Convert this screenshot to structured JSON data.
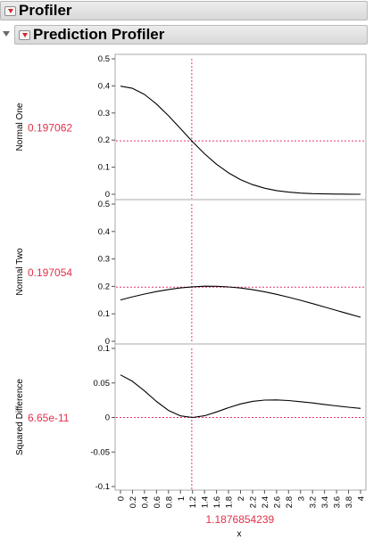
{
  "outline": {
    "profiler_title": "Profiler",
    "prediction_profiler_title": "Prediction Profiler"
  },
  "profiler": {
    "x_label": "x",
    "x_current": "1.1876854239",
    "x_current_value": 1.1876854239,
    "x_range": [
      0,
      4
    ],
    "x_ticks": [
      "0",
      "0.2",
      "0.4",
      "0.6",
      "0.8",
      "1",
      "1.2",
      "1.4",
      "1.6",
      "1.8",
      "2",
      "2.2",
      "2.4",
      "2.6",
      "2.8",
      "3",
      "3.2",
      "3.4",
      "3.6",
      "3.8",
      "4"
    ],
    "x_tick_values": [
      0,
      0.2,
      0.4,
      0.6,
      0.8,
      1,
      1.2,
      1.4,
      1.6,
      1.8,
      2,
      2.2,
      2.4,
      2.6,
      2.8,
      3,
      3.2,
      3.4,
      3.6,
      3.8,
      4
    ],
    "panels": [
      {
        "name": "Normal One",
        "current": "0.197062",
        "current_value": 0.197062,
        "ylim": [
          0,
          0.5
        ],
        "y_ticks": [
          "0",
          "0.1",
          "0.2",
          "0.3",
          "0.4",
          "0.5"
        ],
        "y_tick_values": [
          0,
          0.1,
          0.2,
          0.3,
          0.4,
          0.5
        ],
        "curve": {
          "x": [
            0,
            0.2,
            0.4,
            0.6,
            0.8,
            1.0,
            1.2,
            1.4,
            1.6,
            1.8,
            2.0,
            2.2,
            2.4,
            2.6,
            2.8,
            3.0,
            3.2,
            3.4,
            3.6,
            3.8,
            4.0
          ],
          "y": [
            0.3989,
            0.391,
            0.3683,
            0.3332,
            0.2897,
            0.242,
            0.1942,
            0.1497,
            0.1109,
            0.079,
            0.054,
            0.0355,
            0.0224,
            0.0136,
            0.0079,
            0.0044,
            0.0024,
            0.0012,
            0.0006,
            0.0003,
            0.0001
          ]
        }
      },
      {
        "name": "Normal Two",
        "current": "0.197054",
        "current_value": 0.197054,
        "ylim": [
          0,
          0.5
        ],
        "y_ticks": [
          "0",
          "0.1",
          "0.2",
          "0.3",
          "0.4",
          "0.5"
        ],
        "y_tick_values": [
          0,
          0.1,
          0.2,
          0.3,
          0.4,
          0.5
        ],
        "curve": {
          "x": [
            0,
            0.2,
            0.4,
            0.6,
            0.8,
            1.0,
            1.2,
            1.4,
            1.6,
            1.8,
            2.0,
            2.2,
            2.4,
            2.6,
            2.8,
            3.0,
            3.2,
            3.4,
            3.6,
            3.8,
            4.0
          ],
          "y": [
            0.1506,
            0.1619,
            0.1721,
            0.1811,
            0.1887,
            0.1946,
            0.1985,
            0.2005,
            0.2004,
            0.1982,
            0.1941,
            0.1881,
            0.1804,
            0.1712,
            0.1608,
            0.1495,
            0.1374,
            0.125,
            0.1125,
            0.1,
            0.0878
          ]
        }
      },
      {
        "name": "Squared Difference",
        "current": "6.65e-11",
        "current_value": 0,
        "ylim": [
          -0.1,
          0.1
        ],
        "y_ticks": [
          "-0.1",
          "-0.05",
          "0",
          "0.05",
          "0.1"
        ],
        "y_tick_values": [
          -0.1,
          -0.05,
          0,
          0.05,
          0.1
        ],
        "curve": {
          "x": [
            0,
            0.2,
            0.4,
            0.6,
            0.8,
            1.0,
            1.2,
            1.4,
            1.6,
            1.8,
            2.0,
            2.2,
            2.4,
            2.6,
            2.8,
            3.0,
            3.2,
            3.4,
            3.6,
            3.8,
            4.0
          ],
          "y": [
            0.0617,
            0.0524,
            0.0385,
            0.0232,
            0.0102,
            0.0023,
            0.0,
            0.0024,
            0.008,
            0.0142,
            0.0196,
            0.0233,
            0.0251,
            0.0254,
            0.0245,
            0.0229,
            0.021,
            0.0189,
            0.0168,
            0.0149,
            0.0132
          ]
        }
      }
    ]
  },
  "colors": {
    "reference_line": "#e8356f",
    "value_text": "#e0304a",
    "curve": "#000000",
    "frame": "#a8a8a8"
  }
}
